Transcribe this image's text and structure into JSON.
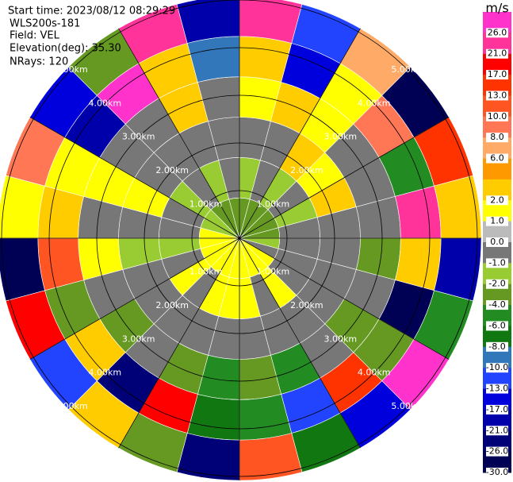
{
  "header": {
    "start_time": "Start time: 2023/08/12 08:29:29",
    "instrument": "WLS200s-181",
    "field": "Field: VEL",
    "elevation": "Elevation(deg): 35.30",
    "nrays": "NRays: 120"
  },
  "rings": [
    "1.00km",
    "2.00km",
    "3.00km",
    "4.00km",
    "5.00km"
  ],
  "colorbar": {
    "unit": "m/s",
    "ticks": [
      {
        "value": 26,
        "label": "26.0"
      },
      {
        "value": 21,
        "label": "21.0"
      },
      {
        "value": 17,
        "label": "17.0"
      },
      {
        "value": 13,
        "label": "13.0"
      },
      {
        "value": 10,
        "label": "10.0"
      },
      {
        "value": 8,
        "label": "8.0"
      },
      {
        "value": 6,
        "label": "6.0"
      },
      null,
      {
        "value": 2,
        "label": "2.0"
      },
      {
        "value": 1,
        "label": "1.0"
      },
      {
        "value": 0,
        "label": "0.0"
      },
      {
        "value": -1,
        "label": "-1.0"
      },
      {
        "value": -2,
        "label": "-2.0"
      },
      {
        "value": -4,
        "label": "-4.0"
      },
      {
        "value": -6,
        "label": "-6.0"
      },
      {
        "value": -8,
        "label": "-8.0"
      },
      {
        "value": -10,
        "label": "-10.0"
      },
      {
        "value": -13,
        "label": "-13.0"
      },
      {
        "value": -17,
        "label": "-17.0"
      },
      {
        "value": -21,
        "label": "-21.0"
      },
      {
        "value": -26,
        "label": "-26.0"
      },
      {
        "value": -30,
        "label": "-30.0"
      }
    ],
    "colors": [
      "#ff33cc",
      "#ff3399",
      "#ff0000",
      "#ff3300",
      "#ff5522",
      "#ff7755",
      "#ffaa66",
      "#ff9900",
      "#ffcc00",
      "#ffff00",
      "#bbbbbb",
      "#777777",
      "#99cc33",
      "#669922",
      "#228B22",
      "#117711",
      "#3377bb",
      "#2244ff",
      "#0000dd",
      "#0000aa",
      "#000077",
      "#000055"
    ]
  },
  "field": {
    "bands": [
      [
        -3,
        -3,
        -3,
        -3,
        -3,
        -3,
        -1.5,
        -0.5,
        1.5,
        1.5,
        1.5,
        1.5,
        1.5,
        1.5,
        1.5,
        1.5,
        1.5,
        1.5,
        1.5,
        -1.5,
        -1.5,
        -3,
        -3,
        -3
      ],
      [
        -1.5,
        -0.5,
        -1.5,
        -0.5,
        -1.5,
        -0.5,
        -0.5,
        -0.5,
        -0.5,
        1.5,
        -0.5,
        1.5,
        1.5,
        1.5,
        -0.5,
        1.5,
        -0.5,
        -1.5,
        -0.5,
        -0.5,
        -1.5,
        -0.5,
        -1.5,
        -0.5
      ],
      [
        -0.5,
        -0.5,
        3,
        1.5,
        3,
        -0.5,
        -0.5,
        -0.5,
        -0.5,
        -0.5,
        -0.5,
        -0.5,
        -0.5,
        -0.5,
        -0.5,
        -0.5,
        -0.5,
        -1.5,
        -0.5,
        1.5,
        -0.5,
        -0.5,
        -0.5,
        -0.5
      ],
      [
        1.5,
        3,
        1.5,
        -0.5,
        -0.5,
        -0.5,
        -3,
        -0.5,
        -3,
        -0.5,
        -5,
        -3,
        -5,
        -3,
        -0.5,
        -3,
        -0.5,
        1.5,
        -0.5,
        1.5,
        -0.5,
        -0.5,
        3,
        -0.5
      ],
      [
        5,
        -15,
        1.5,
        9,
        -5,
        24,
        3,
        -28,
        -3,
        15,
        -12,
        -5,
        -7,
        19,
        -24,
        3,
        -2.5,
        11,
        5,
        1.5,
        -19,
        28,
        3,
        -9
      ],
      [
        23,
        -11,
        7,
        -28,
        15,
        3,
        -19,
        -5,
        30,
        -15,
        -7,
        12,
        -24,
        -3,
        5,
        -11,
        19,
        -28,
        1.5,
        9,
        -15,
        -3,
        24,
        -21
      ]
    ]
  }
}
